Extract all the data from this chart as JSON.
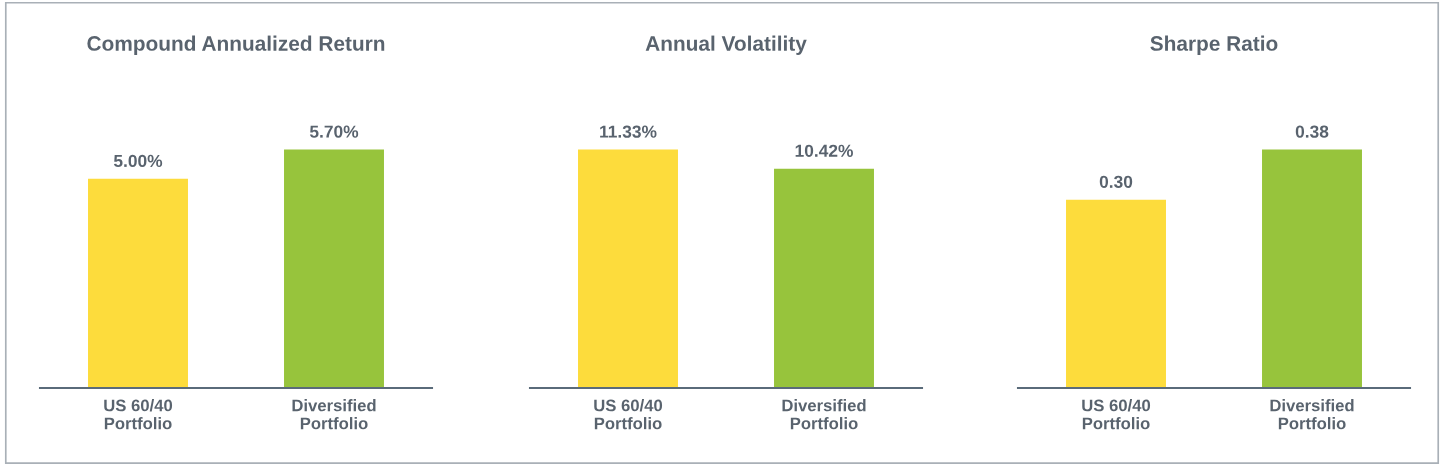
{
  "chart_data": [
    {
      "type": "bar",
      "title": "Compound Annualized Return",
      "categories": [
        "US 60/40\nPortfolio",
        "Diversified\nPortfolio"
      ],
      "values": [
        5.0,
        5.7
      ],
      "colors": [
        "#fddc3c",
        "#97c43c"
      ],
      "value_labels": [
        "5.00%",
        "5.70%"
      ],
      "grid": false,
      "legend": false,
      "tick_labels": "x"
    },
    {
      "type": "bar",
      "title": "Annual Volatility",
      "categories": [
        "US 60/40\nPortfolio",
        "Diversified\nPortfolio"
      ],
      "values": [
        11.33,
        10.42
      ],
      "colors": [
        "#fddc3c",
        "#97c43c"
      ],
      "value_labels": [
        "11.33%",
        "10.42%"
      ],
      "grid": false,
      "legend": false,
      "tick_labels": "x"
    },
    {
      "type": "bar",
      "title": "Sharpe Ratio",
      "categories": [
        "US 60/40\nPortfolio",
        "Diversified\nPortfolio"
      ],
      "values": [
        0.3,
        0.38
      ],
      "colors": [
        "#fddc3c",
        "#97c43c"
      ],
      "value_labels": [
        "0.30",
        "0.38"
      ],
      "grid": false,
      "legend": false,
      "tick_labels": "x"
    }
  ]
}
